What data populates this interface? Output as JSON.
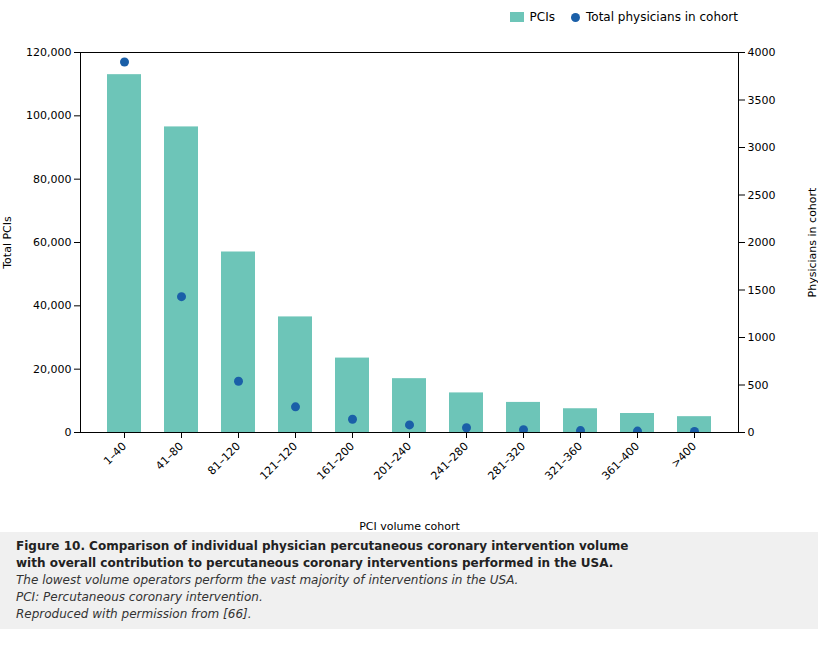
{
  "chart_data": {
    "type": "bar",
    "categories": [
      "1–40",
      "41–80",
      "81–120",
      "121–120",
      "161–200",
      "201–240",
      "241–280",
      "281–320",
      "321–360",
      "361–400",
      ">400"
    ],
    "series": [
      {
        "name": "PCIs",
        "type": "bar",
        "color": "#6dc5b8",
        "values": [
          113000,
          96500,
          57000,
          36500,
          23500,
          17000,
          12500,
          9500,
          7500,
          6000,
          5000
        ]
      },
      {
        "name": "Total physicians in cohort",
        "type": "scatter",
        "marker": "circle",
        "axis": "y2",
        "color": "#1a5fa8",
        "values": [
          3900,
          1430,
          540,
          270,
          140,
          80,
          50,
          30,
          20,
          15,
          10
        ]
      }
    ],
    "xlabel": "PCI volume cohort",
    "ylabel": "Total PCIs",
    "y2label": "Physicians in cohort",
    "ylim": [
      0,
      120000
    ],
    "yticks": [
      0,
      {
        "value": 20000,
        "label": "20,000"
      },
      {
        "value": 40000,
        "label": "40,000"
      },
      {
        "value": 60000,
        "label": "60,000"
      },
      {
        "value": 80000,
        "label": "80,000"
      },
      {
        "value": 100000,
        "label": "100,000"
      },
      {
        "value": 120000,
        "label": "120,000"
      }
    ],
    "y2lim": [
      0,
      4000
    ],
    "y2ticks": [
      0,
      500,
      1000,
      1500,
      2000,
      2500,
      3000,
      3500,
      4000
    ],
    "grid": false,
    "legend": "upper right",
    "annotations": [
      "Figure 10. Comparison of individual physician percutaneous coronary intervention volume",
      "with overall contribution to percutaneous coronary interventions performed in the USA.",
      "The lowest volume operators perform the vast majority of interventions in the USA.",
      "PCI: Percutaneous coronary intervention.",
      "Reproduced with permission from [66]."
    ]
  }
}
